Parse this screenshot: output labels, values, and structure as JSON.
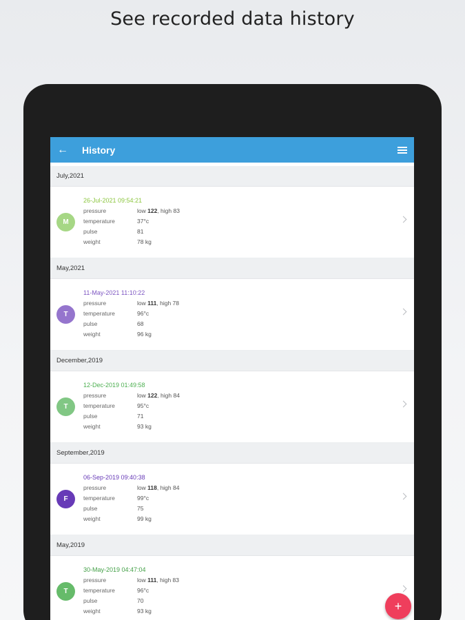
{
  "headline": "See recorded data history",
  "appbar": {
    "title": "History"
  },
  "fab": {
    "label": "+"
  },
  "sections": [
    {
      "header": "July,2021",
      "entry": {
        "avatar": "M",
        "avatar_color": "#a6d785",
        "date": "26-Jul-2021 09:54:21",
        "date_color": "#8cc63f",
        "pressure_prefix": "low ",
        "pressure_low": "122",
        "pressure_mid": ", high ",
        "pressure_high": "83",
        "temperature": "37°c",
        "pulse": "81",
        "weight": "78 kg"
      }
    },
    {
      "header": "May,2021",
      "entry": {
        "avatar": "T",
        "avatar_color": "#9575cd",
        "date": "11-May-2021 11:10:22",
        "date_color": "#7e57c2",
        "pressure_prefix": "low ",
        "pressure_low": "111",
        "pressure_mid": ", high ",
        "pressure_high": "78",
        "temperature": "96°c",
        "pulse": "68",
        "weight": "96 kg"
      }
    },
    {
      "header": "December,2019",
      "entry": {
        "avatar": "T",
        "avatar_color": "#81c784",
        "date": "12-Dec-2019 01:49:58",
        "date_color": "#4caf50",
        "pressure_prefix": "low ",
        "pressure_low": "122",
        "pressure_mid": ", high ",
        "pressure_high": "84",
        "temperature": "95°c",
        "pulse": "71",
        "weight": "93 kg"
      }
    },
    {
      "header": "September,2019",
      "entry": {
        "avatar": "F",
        "avatar_color": "#673ab7",
        "date": "06-Sep-2019 09:40:38",
        "date_color": "#673ab7",
        "pressure_prefix": "low ",
        "pressure_low": "118",
        "pressure_mid": ", high ",
        "pressure_high": "84",
        "temperature": "99°c",
        "pulse": "75",
        "weight": "99 kg"
      }
    },
    {
      "header": "May,2019",
      "entry": {
        "avatar": "T",
        "avatar_color": "#66bb6a",
        "date": "30-May-2019 04:47:04",
        "date_color": "#43a047",
        "pressure_prefix": "low ",
        "pressure_low": "111",
        "pressure_mid": ", high ",
        "pressure_high": "83",
        "temperature": "96°c",
        "pulse": "70",
        "weight": "93 kg"
      }
    }
  ],
  "labels": {
    "pressure": "pressure",
    "temperature": "temperature",
    "pulse": "pulse",
    "weight": "weight"
  },
  "icons": {
    "back": "arrow-left-icon",
    "menu": "hamburger-menu-icon",
    "chevron": "chevron-right-icon",
    "add": "plus-icon"
  }
}
